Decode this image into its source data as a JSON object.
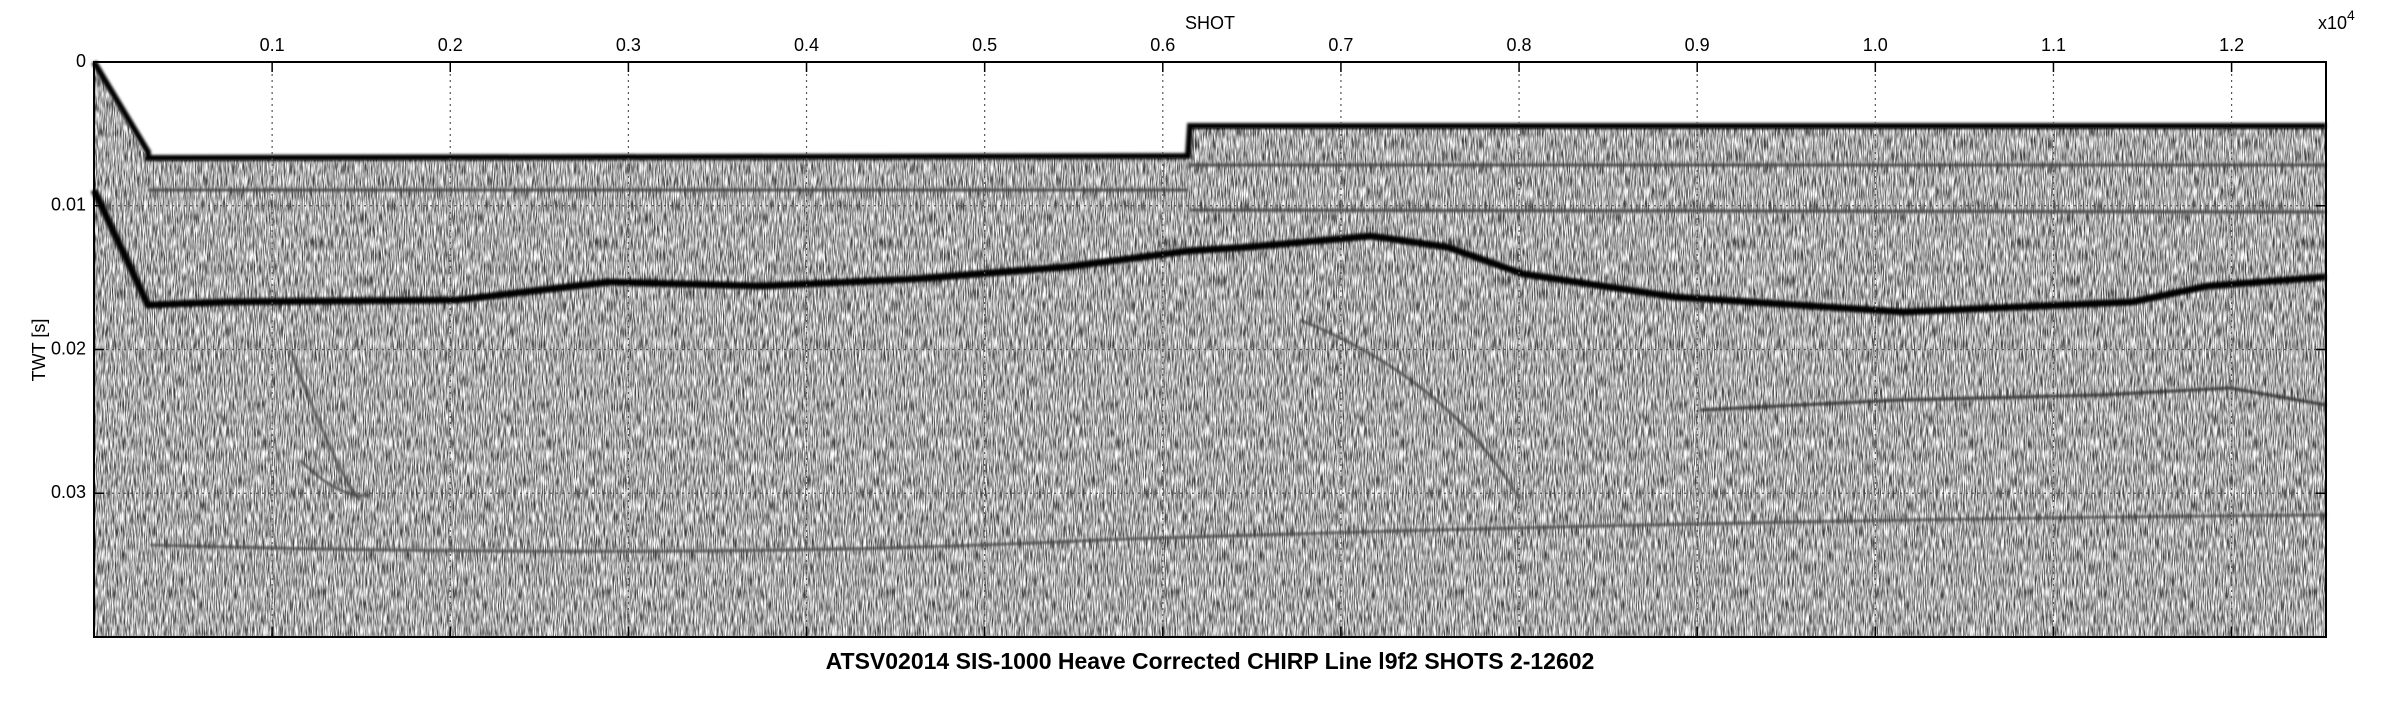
{
  "chart_data": {
    "type": "image",
    "title": "ATSV02014 SIS-1000 Heave Corrected CHIRP Line l9f2 SHOTS 2-12602",
    "x_label": "SHOT",
    "y_label": "TWT [s]",
    "x_multiplier": {
      "base": "x10",
      "exponent": "4"
    },
    "xlim": [
      0,
      1.253
    ],
    "ylim": [
      0,
      0.04
    ],
    "y_inverted": true,
    "xticks": [
      0.1,
      0.2,
      0.3,
      0.4,
      0.5,
      0.6,
      0.7,
      0.8,
      0.9,
      {
        "value": 1,
        "label": "1.0"
      },
      1.1,
      1.2
    ],
    "yticks": [
      0,
      0.01,
      0.02,
      0.03
    ],
    "grid": true
  }
}
